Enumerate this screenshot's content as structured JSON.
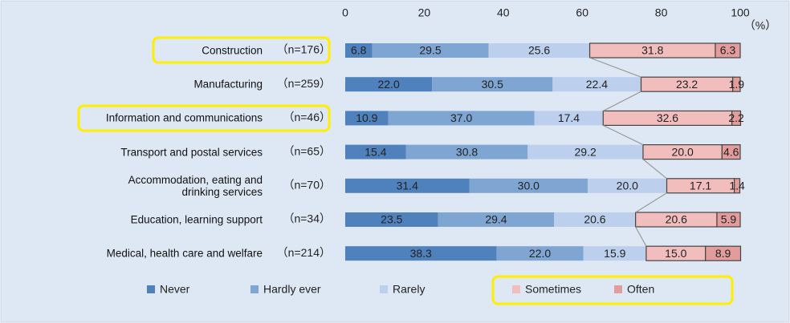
{
  "chart_data": {
    "type": "bar",
    "orientation": "horizontal",
    "stacked": true,
    "categories": [
      "Construction",
      "Manufacturing",
      "Information and communications",
      "Transport and postal services",
      "Accommodation, eating and\ndrinking services",
      "Education, learning support",
      "Medical, health care and welfare"
    ],
    "sample_sizes": [
      "（n=176）",
      "（n=259）",
      "（n=46）",
      "（n=65）",
      "（n=70）",
      "（n=34）",
      "（n=214）"
    ],
    "series": [
      {
        "name": "Never",
        "color": "#4f81bd",
        "values": [
          6.8,
          22,
          10.9,
          15.4,
          31.4,
          23.5,
          38.3
        ],
        "value_labels": [
          "6.8",
          "22.0",
          "10.9",
          "15.4",
          "31.4",
          "23.5",
          "38.3"
        ]
      },
      {
        "name": "Hardly ever",
        "color": "#7fa5d3",
        "values": [
          29.5,
          30.5,
          37,
          30.8,
          30,
          29.4,
          22
        ],
        "value_labels": [
          "29.5",
          "30.5",
          "37.0",
          "30.8",
          "30.0",
          "29.4",
          "22.0"
        ]
      },
      {
        "name": "Rarely",
        "color": "#bccfec",
        "values": [
          25.6,
          22.4,
          17.4,
          29.2,
          20,
          20.6,
          15.9
        ],
        "value_labels": [
          "25.6",
          "22.4",
          "17.4",
          "29.2",
          "20.0",
          "20.6",
          "15.9"
        ]
      },
      {
        "name": "Sometimes",
        "color": "#f2bdbd",
        "outline": "#444444",
        "values": [
          31.8,
          23.2,
          32.6,
          20,
          17.1,
          20.6,
          15
        ],
        "value_labels": [
          "31.8",
          "23.2",
          "32.6",
          "20.0",
          "17.1",
          "20.6",
          "15.0"
        ]
      },
      {
        "name": "Often",
        "color": "#e39c9c",
        "outline": "#444444",
        "values": [
          6.3,
          1.9,
          2.2,
          4.6,
          1.4,
          5.9,
          8.9
        ]
      }
    ],
    "xlim": [
      0,
      100
    ],
    "xticks": [
      0,
      20,
      40,
      60,
      80,
      100
    ],
    "x_unit_label": "（%）",
    "legend": "bottom"
  }
}
